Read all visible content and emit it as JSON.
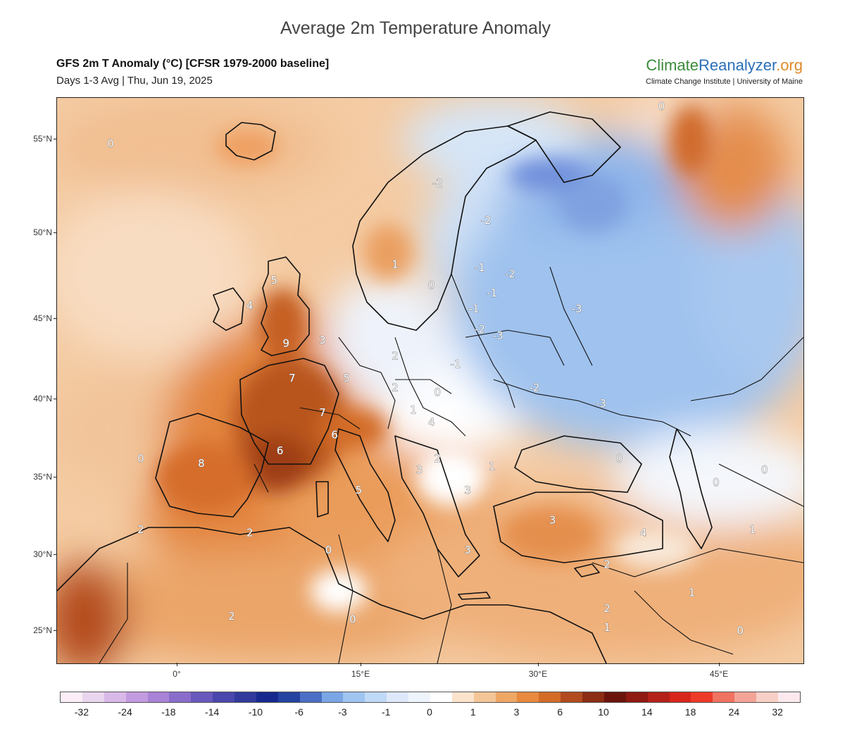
{
  "page_title": "Average 2m Temperature Anomaly",
  "header": {
    "title": "GFS 2m T Anomaly (°C) [CFSR 1979-2000 baseline]",
    "subtitle": "Days 1-3 Avg | Thu, Jun 19, 2025"
  },
  "logo": {
    "part1": "Climate",
    "part2": "Reanalyzer",
    "part3": ".org",
    "subtitle": "Climate Change Institute | University of Maine",
    "colors": {
      "part1": "#3a8a3a",
      "part2": "#2b6fb8",
      "part3": "#e08a2a"
    }
  },
  "axes": {
    "lat_labels": [
      "55°N",
      "50°N",
      "45°N",
      "40°N",
      "35°N",
      "30°N",
      "25°N"
    ],
    "lon_labels": [
      "0°",
      "15°E",
      "30°E",
      "45°E"
    ]
  },
  "contour_labels": [
    {
      "text": "0",
      "lon": -5.5,
      "lat": 54.6
    },
    {
      "text": "0",
      "lon": 40.0,
      "lat": 56.6
    },
    {
      "text": "-2",
      "lon": 21.5,
      "lat": 52.5
    },
    {
      "text": "-2",
      "lon": 25.5,
      "lat": 50.5
    },
    {
      "text": "1",
      "lon": 18.0,
      "lat": 47.8
    },
    {
      "text": "0",
      "lon": 21.0,
      "lat": 46.5
    },
    {
      "text": "-1",
      "lon": 25.0,
      "lat": 47.6
    },
    {
      "text": "-2",
      "lon": 27.5,
      "lat": 47.2
    },
    {
      "text": "-1",
      "lon": 26.0,
      "lat": 46.0
    },
    {
      "text": "-1",
      "lon": 24.5,
      "lat": 45.0
    },
    {
      "text": "-2",
      "lon": 25.0,
      "lat": 43.7
    },
    {
      "text": "-3",
      "lon": 26.5,
      "lat": 43.3
    },
    {
      "text": "-3",
      "lon": 33.0,
      "lat": 45.0
    },
    {
      "text": "-1",
      "lon": 23.0,
      "lat": 41.5
    },
    {
      "text": "-2",
      "lon": 29.5,
      "lat": 40.0
    },
    {
      "text": "-3",
      "lon": 35.0,
      "lat": 39.0
    },
    {
      "text": "5",
      "lon": 8.0,
      "lat": 46.8
    },
    {
      "text": "4",
      "lon": 6.0,
      "lat": 45.2
    },
    {
      "text": "9",
      "lon": 9.0,
      "lat": 42.8
    },
    {
      "text": "3",
      "lon": 12.0,
      "lat": 43.0
    },
    {
      "text": "2",
      "lon": 18.0,
      "lat": 42.0
    },
    {
      "text": "7",
      "lon": 9.5,
      "lat": 40.6
    },
    {
      "text": "5",
      "lon": 14.0,
      "lat": 40.6
    },
    {
      "text": "2",
      "lon": 18.0,
      "lat": 40.0
    },
    {
      "text": "0",
      "lon": 21.5,
      "lat": 39.7
    },
    {
      "text": "1",
      "lon": 19.5,
      "lat": 38.6
    },
    {
      "text": "7",
      "lon": 12.0,
      "lat": 38.4
    },
    {
      "text": "4",
      "lon": 21.0,
      "lat": 37.8
    },
    {
      "text": "6",
      "lon": 13.0,
      "lat": 37.0
    },
    {
      "text": "6",
      "lon": 8.5,
      "lat": 36.0
    },
    {
      "text": "0",
      "lon": -3.0,
      "lat": 35.5
    },
    {
      "text": "8",
      "lon": 2.0,
      "lat": 35.2
    },
    {
      "text": "2",
      "lon": 21.5,
      "lat": 35.5
    },
    {
      "text": "1",
      "lon": 26.0,
      "lat": 35.0
    },
    {
      "text": "3",
      "lon": 20.0,
      "lat": 34.8
    },
    {
      "text": "3",
      "lon": 24.0,
      "lat": 33.5
    },
    {
      "text": "5",
      "lon": 15.0,
      "lat": 33.5
    },
    {
      "text": "0",
      "lon": 36.5,
      "lat": 35.5
    },
    {
      "text": "0",
      "lon": 44.5,
      "lat": 34.0
    },
    {
      "text": "0",
      "lon": 48.5,
      "lat": 34.8
    },
    {
      "text": "2",
      "lon": -3.0,
      "lat": 31.0
    },
    {
      "text": "2",
      "lon": 6.0,
      "lat": 30.8
    },
    {
      "text": "3",
      "lon": 31.0,
      "lat": 31.6
    },
    {
      "text": "4",
      "lon": 38.5,
      "lat": 30.8
    },
    {
      "text": "1",
      "lon": 47.5,
      "lat": 31.0
    },
    {
      "text": "0",
      "lon": 12.5,
      "lat": 29.7
    },
    {
      "text": "3",
      "lon": 24.0,
      "lat": 29.7
    },
    {
      "text": "2",
      "lon": 35.5,
      "lat": 28.8
    },
    {
      "text": "1",
      "lon": 42.5,
      "lat": 27.0
    },
    {
      "text": "2",
      "lon": 35.5,
      "lat": 26.0
    },
    {
      "text": "2",
      "lon": 4.5,
      "lat": 25.5
    },
    {
      "text": "0",
      "lon": 14.5,
      "lat": 25.3
    },
    {
      "text": "1",
      "lon": 35.5,
      "lat": 24.8
    },
    {
      "text": "0",
      "lon": 46.5,
      "lat": 24.6
    }
  ],
  "colorbar": {
    "colors": [
      "#fbeef7",
      "#ead5ee",
      "#d8b9e8",
      "#c39be0",
      "#a983d6",
      "#8a6dcb",
      "#6959bc",
      "#4a47ad",
      "#313a9c",
      "#17298f",
      "#2442a0",
      "#4a6fc5",
      "#7aa6e6",
      "#9fc4f0",
      "#c0d9f6",
      "#dde9fa",
      "#eef4fc",
      "#ffffff",
      "#fbe3cc",
      "#f4c596",
      "#eea765",
      "#e8893f",
      "#d36c27",
      "#b24c1f",
      "#8c2d14",
      "#6a140c",
      "#8e1a12",
      "#b42118",
      "#d8261d",
      "#ee3a28",
      "#ef7360",
      "#f3a496",
      "#f8cfc6",
      "#fbe9ee"
    ],
    "labels": [
      "-32",
      "-24",
      "-18",
      "-14",
      "-10",
      "-6",
      "-3",
      "-1",
      "0",
      "1",
      "3",
      "6",
      "10",
      "14",
      "18",
      "24",
      "32"
    ]
  }
}
